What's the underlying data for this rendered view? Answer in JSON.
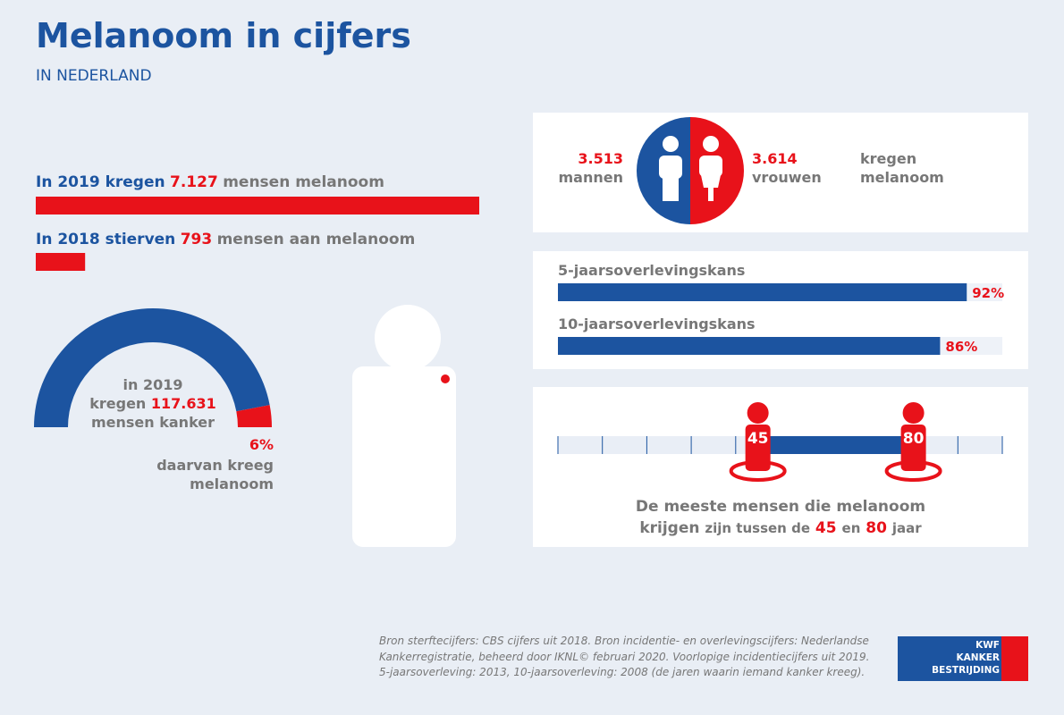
{
  "header": {
    "title": "Melanoom in cijfers",
    "subtitle": "IN NEDERLAND"
  },
  "incidence": {
    "prefix": "In 2019 kregen",
    "value": {
      "value": 7127,
      "label": "7.127"
    },
    "suffix": "mensen melanoom"
  },
  "deaths": {
    "prefix": "In 2018 stierven",
    "value": {
      "value": 793,
      "label": "793"
    },
    "suffix": "mensen aan melanoom"
  },
  "gauge": {
    "line1": "in 2019",
    "line2": "kregen",
    "total": "117.631",
    "line3": "mensen kanker",
    "share": {
      "value": 6,
      "label": "6%"
    },
    "note1": "daarvan kreeg",
    "note2": "melanoom"
  },
  "gender": {
    "men": {
      "value": "3.513",
      "label": "mannen"
    },
    "women": {
      "value": "3.614",
      "label": "vrouwen"
    },
    "text1": "kregen",
    "text2": "melanoom"
  },
  "survival": [
    {
      "label": "5-jaarsoverlevingskans",
      "value": {
        "value": 92,
        "label": "92%"
      }
    },
    {
      "label": "10-jaarsoverlevingskans",
      "value": {
        "value": 86,
        "label": "86%"
      }
    }
  ],
  "age": {
    "range": [
      0,
      100
    ],
    "ticks": [
      0,
      10,
      20,
      30,
      40,
      50,
      60,
      70,
      80,
      90,
      100
    ],
    "from": 45,
    "to": 80,
    "caption1": "De meeste mensen die melanoom",
    "caption2a": "krijgen",
    "caption2b": "zijn tussen de",
    "caption2c": "en",
    "caption2d": "jaar"
  },
  "footnote": [
    "Bron sterftecijfers: CBS cijfers uit 2018. Bron incidentie- en overlevingscijfers: Nederlandse",
    "Kankerregistratie, beheerd door IKNL© februari 2020. Voorlopige incidentiecijfers uit 2019.",
    "5-jaarsoverleving: 2013, 10-jaarsoverleving: 2008 (de jaren waarin iemand kanker kreeg)."
  ],
  "logo": [
    "KWF",
    "KANKER",
    "BESTRIJDING"
  ]
}
